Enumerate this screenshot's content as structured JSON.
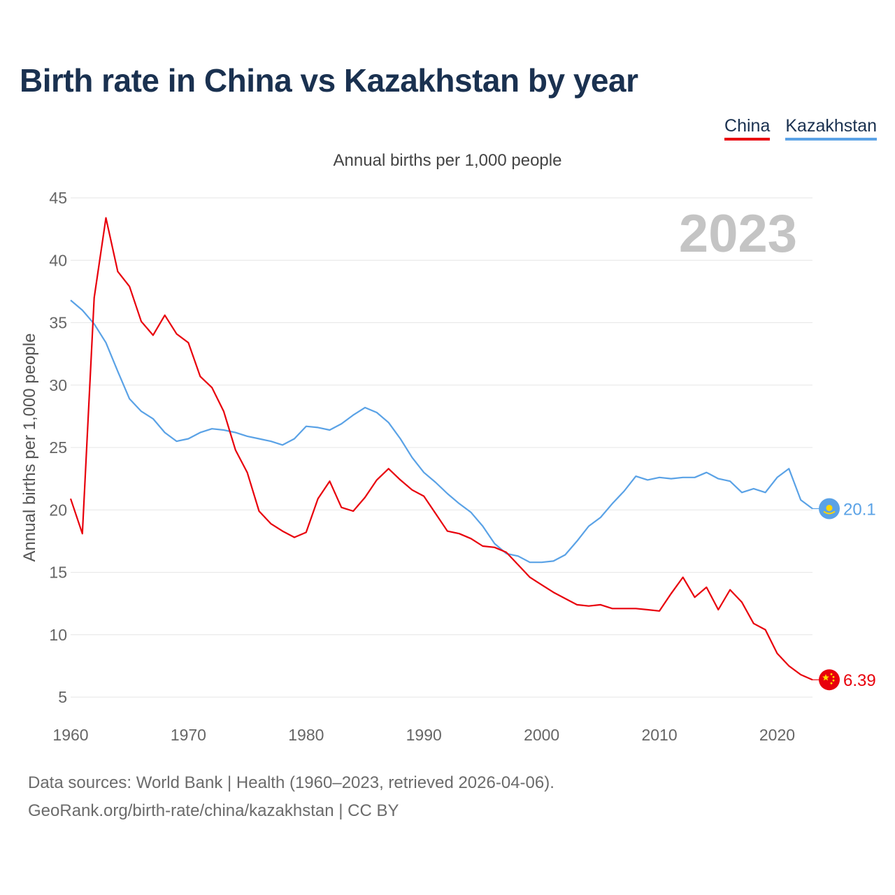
{
  "page": {
    "title": "Birth rate in China vs Kazakhstan by year",
    "subtitle": "Annual births per 1,000 people",
    "source_line1": "Data sources: World Bank | Health (1960–2023, retrieved 2026-04-06).",
    "source_line2": "GeoRank.org/birth-rate/china/kazakhstan | CC BY",
    "year_label": "2023"
  },
  "legend": [
    {
      "label": "China",
      "color": "#e8000b"
    },
    {
      "label": "Kazakhstan",
      "color": "#5aa2e6"
    }
  ],
  "chart_data": {
    "type": "line",
    "title": "Birth rate in China vs Kazakhstan by year",
    "xlabel": "",
    "ylabel": "Annual births per 1,000 people",
    "xlim": [
      1960,
      2023
    ],
    "ylim": [
      5,
      45
    ],
    "xticks": [
      1960,
      1970,
      1980,
      1990,
      2000,
      2010,
      2020
    ],
    "yticks": [
      5,
      10,
      15,
      20,
      25,
      30,
      35,
      40,
      45
    ],
    "grid": true,
    "legend_position": "top-right",
    "x": [
      1960,
      1961,
      1962,
      1963,
      1964,
      1965,
      1966,
      1967,
      1968,
      1969,
      1970,
      1971,
      1972,
      1973,
      1974,
      1975,
      1976,
      1977,
      1978,
      1979,
      1980,
      1981,
      1982,
      1983,
      1984,
      1985,
      1986,
      1987,
      1988,
      1989,
      1990,
      1991,
      1992,
      1993,
      1994,
      1995,
      1996,
      1997,
      1998,
      1999,
      2000,
      2001,
      2002,
      2003,
      2004,
      2005,
      2006,
      2007,
      2008,
      2009,
      2010,
      2011,
      2012,
      2013,
      2014,
      2015,
      2016,
      2017,
      2018,
      2019,
      2020,
      2021,
      2022,
      2023
    ],
    "series": [
      {
        "name": "China",
        "color": "#e8000b",
        "end_label": "6.39",
        "values": [
          20.9,
          18.1,
          37.0,
          43.4,
          39.1,
          37.9,
          35.1,
          34.0,
          35.6,
          34.1,
          33.4,
          30.7,
          29.8,
          27.9,
          24.8,
          23.0,
          19.9,
          18.9,
          18.3,
          17.8,
          18.2,
          20.9,
          22.3,
          20.2,
          19.9,
          21.0,
          22.4,
          23.3,
          22.4,
          21.6,
          21.1,
          19.7,
          18.3,
          18.1,
          17.7,
          17.1,
          17.0,
          16.6,
          15.6,
          14.6,
          14.0,
          13.4,
          12.9,
          12.4,
          12.3,
          12.4,
          12.1,
          12.1,
          12.1,
          12.0,
          11.9,
          13.3,
          14.6,
          13.0,
          13.8,
          12.0,
          13.6,
          12.6,
          10.9,
          10.4,
          8.5,
          7.5,
          6.8,
          6.39
        ]
      },
      {
        "name": "Kazakhstan",
        "color": "#5aa2e6",
        "end_label": "20.1",
        "values": [
          36.8,
          36.0,
          34.9,
          33.4,
          31.1,
          28.9,
          27.9,
          27.3,
          26.2,
          25.5,
          25.7,
          26.2,
          26.5,
          26.4,
          26.2,
          25.9,
          25.7,
          25.5,
          25.2,
          25.7,
          26.7,
          26.6,
          26.4,
          26.9,
          27.6,
          28.2,
          27.8,
          27.0,
          25.7,
          24.2,
          23.0,
          22.2,
          21.3,
          20.5,
          19.8,
          18.7,
          17.3,
          16.5,
          16.3,
          15.8,
          15.8,
          15.9,
          16.4,
          17.5,
          18.7,
          19.4,
          20.5,
          21.5,
          22.7,
          22.4,
          22.6,
          22.5,
          22.6,
          22.6,
          23.0,
          22.5,
          22.3,
          21.4,
          21.7,
          21.4,
          22.6,
          23.3,
          20.8,
          20.1
        ]
      }
    ]
  }
}
